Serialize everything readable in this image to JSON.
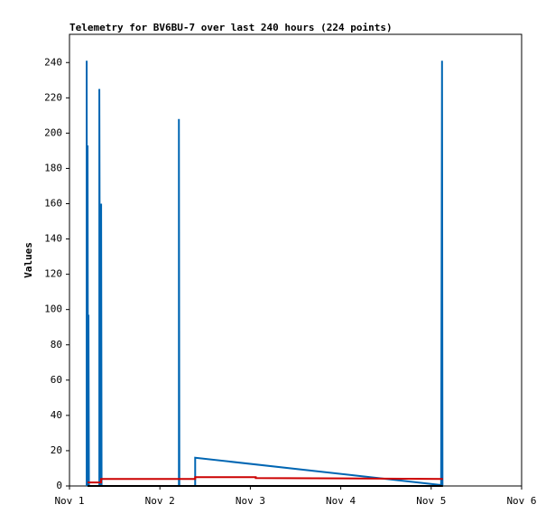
{
  "chart_data": {
    "type": "line",
    "title": "Telemetry for BV6BU-7 over last 240 hours (224 points)",
    "y_label": "Values",
    "xlim": [
      0,
      5
    ],
    "xticks": [
      {
        "value": 0,
        "label": "Nov 1"
      },
      {
        "value": 1,
        "label": "Nov 2"
      },
      {
        "value": 2,
        "label": "Nov 3"
      },
      {
        "value": 3,
        "label": "Nov 4"
      },
      {
        "value": 4,
        "label": "Nov 5"
      },
      {
        "value": 5,
        "label": "Nov 6"
      }
    ],
    "ylim": [
      0,
      256
    ],
    "yticks": [
      0,
      20,
      40,
      60,
      80,
      100,
      120,
      140,
      160,
      180,
      200,
      220,
      240
    ],
    "grid": false,
    "series": [
      {
        "color": "#0066b3",
        "x": [
          0.19,
          0.19,
          0.195,
          0.2,
          0.205,
          0.21,
          0.215,
          0.33,
          0.33,
          0.34,
          0.35,
          0.355,
          1.21,
          1.21,
          1.215,
          1.39,
          1.39,
          4.11,
          4.12,
          4.125
        ],
        "values": [
          0,
          241,
          0,
          193,
          0,
          97,
          0,
          0,
          225,
          0,
          160,
          0,
          0,
          208,
          0,
          0,
          16,
          0.5,
          241,
          0
        ]
      },
      {
        "color": "#cc0000",
        "x": [
          0.2,
          0.35,
          0.35,
          1.39,
          1.39,
          2.06,
          2.06,
          4.13
        ],
        "values": [
          2,
          2,
          4,
          4,
          5,
          5,
          4.5,
          4
        ]
      },
      {
        "color": "#000000",
        "x": [
          0.2,
          4.13
        ],
        "values": [
          0,
          0
        ]
      }
    ]
  }
}
